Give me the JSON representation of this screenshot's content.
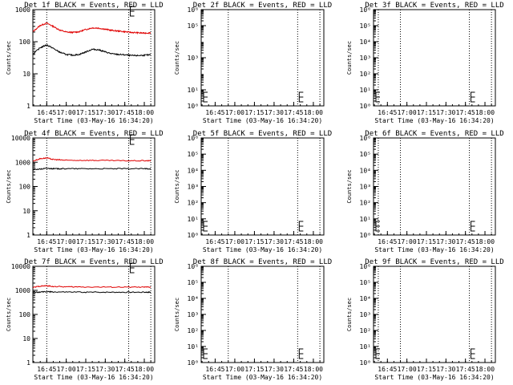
{
  "page": {
    "xlabel": "Start Time (03-May-16 16:34:20)",
    "ylabel": "Counts/sec",
    "colors": {
      "events": "#000000",
      "lld": "#e00000",
      "axes": "#000000"
    }
  },
  "chart_data": [
    {
      "id": "det1f",
      "title": "Det 1f BLACK = Events, RED = LLD",
      "type": "line",
      "ylim": [
        1,
        1000
      ],
      "ylog": true,
      "yticks": [
        {
          "v": 1,
          "t": "1"
        },
        {
          "v": 10,
          "t": "10"
        },
        {
          "v": 100,
          "t": "100"
        },
        {
          "v": 1000,
          "t": "1000"
        }
      ],
      "xlim": [
        "16:34:20",
        "18:08:00"
      ],
      "xticks": [
        "16:45",
        "17:00",
        "17:15",
        "17:30",
        "17:45",
        "18:00"
      ],
      "vlines": [
        "16:45",
        "17:48",
        "18:05"
      ],
      "has_data": true,
      "series": [
        {
          "name": "LLD",
          "color": "#e00000",
          "x": [
            "16:34",
            "16:40",
            "16:45",
            "16:50",
            "16:55",
            "17:00",
            "17:05",
            "17:10",
            "17:15",
            "17:20",
            "17:25",
            "17:30",
            "17:35",
            "17:40",
            "17:45",
            "17:50",
            "17:55",
            "18:00",
            "18:05"
          ],
          "y": [
            200,
            320,
            380,
            300,
            230,
            200,
            195,
            205,
            240,
            270,
            265,
            245,
            225,
            215,
            205,
            195,
            190,
            185,
            190
          ]
        },
        {
          "name": "Events",
          "color": "#000000",
          "x": [
            "16:34",
            "16:40",
            "16:45",
            "16:50",
            "16:55",
            "17:00",
            "17:05",
            "17:10",
            "17:15",
            "17:20",
            "17:25",
            "17:30",
            "17:35",
            "17:40",
            "17:45",
            "17:50",
            "17:55",
            "18:00",
            "18:05"
          ],
          "y": [
            40,
            65,
            80,
            62,
            47,
            40,
            38,
            40,
            48,
            58,
            56,
            48,
            42,
            40,
            39,
            37,
            37,
            38,
            39
          ]
        }
      ]
    },
    {
      "id": "det2f",
      "title": "Det 2f BLACK = Events, RED = LLD",
      "type": "line",
      "ylim": [
        1,
        1000000
      ],
      "ylog": true,
      "yticks": [
        {
          "v": 1,
          "t": "10⁰"
        },
        {
          "v": 10,
          "t": "10¹"
        },
        {
          "v": 1000,
          "t": "10³"
        },
        {
          "v": 100000,
          "t": "10⁵"
        },
        {
          "v": 1000000,
          "t": "10⁶"
        }
      ],
      "xlim": [
        "16:34:20",
        "18:08:00"
      ],
      "xticks": [
        "16:45",
        "17:00",
        "17:15",
        "17:30",
        "17:45",
        "18:00"
      ],
      "vlines": [
        "16:55",
        "17:48",
        "18:05"
      ],
      "has_data": false,
      "series": []
    },
    {
      "id": "det3f",
      "title": "Det 3f BLACK = Events, RED = LLD",
      "type": "line",
      "ylim": [
        1,
        1000000
      ],
      "ylog": true,
      "yticks": [
        {
          "v": 1,
          "t": "10⁰"
        },
        {
          "v": 10,
          "t": "10¹"
        },
        {
          "v": 100,
          "t": "10²"
        },
        {
          "v": 1000,
          "t": "10³"
        },
        {
          "v": 10000,
          "t": "10⁴"
        },
        {
          "v": 100000,
          "t": "10⁵"
        },
        {
          "v": 1000000,
          "t": "10⁶"
        }
      ],
      "xlim": [
        "16:34:20",
        "18:08:00"
      ],
      "xticks": [
        "16:45",
        "17:00",
        "17:15",
        "17:30",
        "17:45",
        "18:00"
      ],
      "vlines": [
        "16:38",
        "16:55",
        "17:48",
        "18:05"
      ],
      "has_data": false,
      "series": []
    },
    {
      "id": "det4f",
      "title": "Det 4f BLACK = Events, RED = LLD",
      "type": "line",
      "ylim": [
        1,
        10000
      ],
      "ylog": true,
      "yticks": [
        {
          "v": 1,
          "t": "1"
        },
        {
          "v": 10,
          "t": "10"
        },
        {
          "v": 100,
          "t": "100"
        },
        {
          "v": 1000,
          "t": "1000"
        },
        {
          "v": 10000,
          "t": "10000"
        }
      ],
      "xlim": [
        "16:34:20",
        "18:08:00"
      ],
      "xticks": [
        "16:45",
        "17:00",
        "17:15",
        "17:30",
        "17:45",
        "18:00"
      ],
      "vlines": [
        "16:45",
        "17:48",
        "18:05"
      ],
      "has_data": true,
      "series": [
        {
          "name": "LLD",
          "color": "#e00000",
          "x": [
            "16:34",
            "16:40",
            "16:45",
            "16:50",
            "16:55",
            "17:00",
            "17:15",
            "17:30",
            "17:45",
            "18:00",
            "18:05"
          ],
          "y": [
            1100,
            1400,
            1500,
            1300,
            1250,
            1200,
            1200,
            1180,
            1150,
            1150,
            1150
          ]
        },
        {
          "name": "Events",
          "color": "#000000",
          "x": [
            "16:34",
            "16:40",
            "16:45",
            "16:50",
            "16:55",
            "17:00",
            "17:15",
            "17:30",
            "17:45",
            "18:00",
            "18:05"
          ],
          "y": [
            500,
            520,
            560,
            540,
            540,
            540,
            540,
            540,
            540,
            540,
            540
          ]
        }
      ]
    },
    {
      "id": "det5f",
      "title": "Det 5f BLACK = Events, RED = LLD",
      "type": "line",
      "ylim": [
        1,
        1000000
      ],
      "ylog": true,
      "yticks": [
        {
          "v": 1,
          "t": "10⁰"
        },
        {
          "v": 10,
          "t": "10¹"
        },
        {
          "v": 100,
          "t": "10²"
        },
        {
          "v": 1000,
          "t": "10³"
        },
        {
          "v": 10000,
          "t": "10⁴"
        },
        {
          "v": 100000,
          "t": "10⁵"
        },
        {
          "v": 1000000,
          "t": "10⁶"
        }
      ],
      "xlim": [
        "16:34:20",
        "18:08:00"
      ],
      "xticks": [
        "16:45",
        "17:00",
        "17:15",
        "17:30",
        "17:45",
        "18:00"
      ],
      "vlines": [
        "16:55",
        "17:48",
        "18:05"
      ],
      "has_data": false,
      "series": []
    },
    {
      "id": "det6f",
      "title": "Det 6f BLACK = Events, RED = LLD",
      "type": "line",
      "ylim": [
        1,
        1000000
      ],
      "ylog": true,
      "yticks": [
        {
          "v": 1,
          "t": "10⁰"
        },
        {
          "v": 10,
          "t": "10¹"
        },
        {
          "v": 100,
          "t": "10²"
        },
        {
          "v": 1000,
          "t": "10³"
        },
        {
          "v": 10000,
          "t": "10⁴"
        },
        {
          "v": 100000,
          "t": "10⁵"
        },
        {
          "v": 1000000,
          "t": "10⁶"
        }
      ],
      "xlim": [
        "16:34:20",
        "18:08:00"
      ],
      "xticks": [
        "16:45",
        "17:00",
        "17:15",
        "17:30",
        "17:45",
        "18:00"
      ],
      "vlines": [
        "16:38",
        "16:55",
        "17:48",
        "18:05"
      ],
      "has_data": false,
      "series": []
    },
    {
      "id": "det7f",
      "title": "Det 7f BLACK = Events, RED = LLD",
      "type": "line",
      "ylim": [
        1,
        10000
      ],
      "ylog": true,
      "yticks": [
        {
          "v": 1,
          "t": "1"
        },
        {
          "v": 10,
          "t": "10"
        },
        {
          "v": 100,
          "t": "100"
        },
        {
          "v": 1000,
          "t": "1000"
        },
        {
          "v": 10000,
          "t": "10000"
        }
      ],
      "xlim": [
        "16:34:20",
        "18:08:00"
      ],
      "xticks": [
        "16:45",
        "17:00",
        "17:15",
        "17:30",
        "17:45",
        "18:00"
      ],
      "vlines": [
        "16:45",
        "17:48",
        "18:05"
      ],
      "has_data": true,
      "series": [
        {
          "name": "LLD",
          "color": "#e00000",
          "x": [
            "16:34",
            "16:40",
            "16:45",
            "16:50",
            "17:00",
            "17:15",
            "17:30",
            "17:45",
            "18:00",
            "18:05"
          ],
          "y": [
            1300,
            1500,
            1550,
            1450,
            1400,
            1380,
            1370,
            1360,
            1360,
            1360
          ]
        },
        {
          "name": "Events",
          "color": "#000000",
          "x": [
            "16:34",
            "16:40",
            "16:45",
            "16:50",
            "17:00",
            "17:15",
            "17:30",
            "17:45",
            "18:00",
            "18:05"
          ],
          "y": [
            800,
            850,
            880,
            860,
            850,
            840,
            840,
            840,
            840,
            840
          ]
        }
      ]
    },
    {
      "id": "det8f",
      "title": "Det 8f BLACK = Events, RED = LLD",
      "type": "line",
      "ylim": [
        1,
        1000000
      ],
      "ylog": true,
      "yticks": [
        {
          "v": 1,
          "t": "10⁰"
        },
        {
          "v": 10,
          "t": "10¹"
        },
        {
          "v": 100,
          "t": "10²"
        },
        {
          "v": 1000,
          "t": "10³"
        },
        {
          "v": 10000,
          "t": "10⁴"
        },
        {
          "v": 100000,
          "t": "10⁵"
        },
        {
          "v": 1000000,
          "t": "10⁶"
        }
      ],
      "xlim": [
        "16:34:20",
        "18:08:00"
      ],
      "xticks": [
        "16:45",
        "17:00",
        "17:15",
        "17:30",
        "17:45",
        "18:00"
      ],
      "vlines": [
        "16:55",
        "17:48",
        "18:05"
      ],
      "has_data": false,
      "series": []
    },
    {
      "id": "det9f",
      "title": "Det 9f BLACK = Events, RED = LLD",
      "type": "line",
      "ylim": [
        1,
        1000000
      ],
      "ylog": true,
      "yticks": [
        {
          "v": 1,
          "t": "10⁰"
        },
        {
          "v": 10,
          "t": "10¹"
        },
        {
          "v": 100,
          "t": "10²"
        },
        {
          "v": 1000,
          "t": "10³"
        },
        {
          "v": 10000,
          "t": "10⁴"
        },
        {
          "v": 100000,
          "t": "10⁵"
        },
        {
          "v": 1000000,
          "t": "10⁶"
        }
      ],
      "xlim": [
        "16:34:20",
        "18:08:00"
      ],
      "xticks": [
        "16:45",
        "17:00",
        "17:15",
        "17:30",
        "17:45",
        "18:00"
      ],
      "vlines": [
        "16:38",
        "16:55",
        "17:48",
        "18:05"
      ],
      "has_data": false,
      "series": []
    }
  ]
}
